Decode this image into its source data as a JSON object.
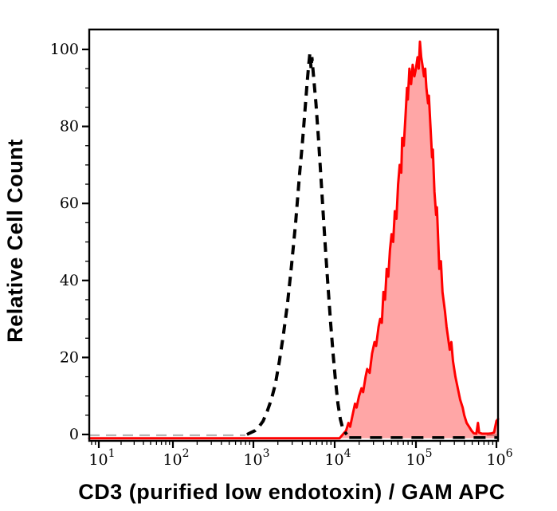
{
  "figure": {
    "x_axis_title": "CD3 (purified low endotoxin) / GAM APC",
    "y_axis_title": "Relative Cell Count"
  },
  "chart_data": {
    "type": "area",
    "subtype": "flow-cytometry-histogram-overlay",
    "title": "",
    "x_axis": {
      "label": "CD3 (purified low endotoxin) / GAM APC",
      "scale": "log10",
      "decade_ticks": [
        1,
        2,
        3,
        4,
        5,
        6
      ],
      "tick_label_base": "10",
      "range_log10": [
        0.87,
        6.03
      ],
      "minor_ticks": "log-subdivisions 2-9 per decade"
    },
    "y_axis": {
      "label": "Relative Cell Count",
      "major_ticks": [
        0,
        20,
        40,
        60,
        80,
        100
      ],
      "minor_tick_step": 5,
      "range": [
        0,
        107
      ]
    },
    "grid": false,
    "legend": false,
    "series": [
      {
        "name": "negative-control-dashed",
        "style": "dashed",
        "color": "#000000",
        "peak_log10_x": 3.7,
        "peak_count": 99,
        "points": [
          [
            2.92,
            0
          ],
          [
            2.97,
            0.5
          ],
          [
            3.02,
            1
          ],
          [
            3.07,
            2
          ],
          [
            3.12,
            3.5
          ],
          [
            3.17,
            6
          ],
          [
            3.22,
            9
          ],
          [
            3.27,
            13
          ],
          [
            3.32,
            19
          ],
          [
            3.37,
            26
          ],
          [
            3.42,
            34
          ],
          [
            3.47,
            44
          ],
          [
            3.52,
            55
          ],
          [
            3.57,
            68
          ],
          [
            3.6,
            75
          ],
          [
            3.63,
            83
          ],
          [
            3.66,
            91
          ],
          [
            3.68,
            96
          ],
          [
            3.695,
            99
          ],
          [
            3.71,
            95
          ],
          [
            3.72,
            98
          ],
          [
            3.74,
            93
          ],
          [
            3.77,
            86
          ],
          [
            3.8,
            77
          ],
          [
            3.83,
            67
          ],
          [
            3.86,
            57
          ],
          [
            3.89,
            47
          ],
          [
            3.92,
            38
          ],
          [
            3.95,
            29
          ],
          [
            3.98,
            21
          ],
          [
            4.01,
            14
          ],
          [
            4.04,
            8
          ],
          [
            4.07,
            4
          ],
          [
            4.1,
            1.5
          ],
          [
            4.13,
            0.5
          ],
          [
            4.15,
            0
          ]
        ]
      },
      {
        "name": "cd3-stained-red-filled",
        "style": "solid-filled",
        "color": "#ff0000",
        "fill": "rgba(255,0,0,0.35)",
        "peak_log10_x": 5.05,
        "peak_count": 102,
        "points": [
          [
            0.87,
            -1
          ],
          [
            4.06,
            -1
          ],
          [
            4.1,
            0
          ],
          [
            4.14,
            1
          ],
          [
            4.17,
            3
          ],
          [
            4.19,
            2
          ],
          [
            4.22,
            5
          ],
          [
            4.25,
            8
          ],
          [
            4.27,
            7
          ],
          [
            4.3,
            10
          ],
          [
            4.33,
            12
          ],
          [
            4.35,
            11
          ],
          [
            4.38,
            15
          ],
          [
            4.4,
            17
          ],
          [
            4.43,
            16
          ],
          [
            4.46,
            21
          ],
          [
            4.49,
            24
          ],
          [
            4.51,
            23
          ],
          [
            4.54,
            28
          ],
          [
            4.56,
            30
          ],
          [
            4.58,
            29
          ],
          [
            4.6,
            37
          ],
          [
            4.62,
            35
          ],
          [
            4.64,
            43
          ],
          [
            4.66,
            41
          ],
          [
            4.68,
            48
          ],
          [
            4.7,
            52
          ],
          [
            4.72,
            50
          ],
          [
            4.74,
            58
          ],
          [
            4.76,
            56
          ],
          [
            4.78,
            65
          ],
          [
            4.8,
            70
          ],
          [
            4.82,
            68
          ],
          [
            4.83,
            77
          ],
          [
            4.85,
            75
          ],
          [
            4.87,
            82
          ],
          [
            4.89,
            90
          ],
          [
            4.9,
            87
          ],
          [
            4.92,
            95
          ],
          [
            4.94,
            91
          ],
          [
            4.96,
            96
          ],
          [
            4.98,
            93
          ],
          [
            5.0,
            95
          ],
          [
            5.02,
            98
          ],
          [
            5.035,
            95
          ],
          [
            5.05,
            102
          ],
          [
            5.065,
            98
          ],
          [
            5.08,
            96
          ],
          [
            5.1,
            93
          ],
          [
            5.115,
            95
          ],
          [
            5.13,
            90
          ],
          [
            5.15,
            86
          ],
          [
            5.16,
            88
          ],
          [
            5.18,
            80
          ],
          [
            5.2,
            72
          ],
          [
            5.21,
            74
          ],
          [
            5.23,
            63
          ],
          [
            5.25,
            57
          ],
          [
            5.26,
            59
          ],
          [
            5.29,
            43
          ],
          [
            5.31,
            45
          ],
          [
            5.33,
            37
          ],
          [
            5.36,
            32
          ],
          [
            5.38,
            28
          ],
          [
            5.4,
            25
          ],
          [
            5.42,
            22
          ],
          [
            5.44,
            24
          ],
          [
            5.46,
            19
          ],
          [
            5.49,
            15
          ],
          [
            5.52,
            12
          ],
          [
            5.55,
            9
          ],
          [
            5.58,
            7
          ],
          [
            5.6,
            5
          ],
          [
            5.63,
            3
          ],
          [
            5.66,
            2
          ],
          [
            5.69,
            1
          ],
          [
            5.72,
            0.3
          ],
          [
            5.75,
            0.2
          ],
          [
            5.77,
            3
          ],
          [
            5.785,
            0.5
          ],
          [
            5.82,
            0.2
          ],
          [
            5.9,
            0.2
          ],
          [
            5.94,
            0.3
          ],
          [
            5.97,
            0.5
          ],
          [
            6.0,
            3.5
          ],
          [
            6.03,
            4
          ]
        ]
      },
      {
        "name": "baseline-dashes-gray",
        "style": "dashed",
        "color": "#b5b5b5",
        "level": -0.2,
        "segments_log10_x": [
          [
            0.87,
            2.9
          ],
          [
            5.88,
            6.03
          ]
        ]
      },
      {
        "name": "baseline-dashes-black",
        "style": "dashed",
        "color": "#000000",
        "level": -0.8,
        "segments_log10_x": [
          [
            4.18,
            6.03
          ]
        ]
      }
    ]
  }
}
